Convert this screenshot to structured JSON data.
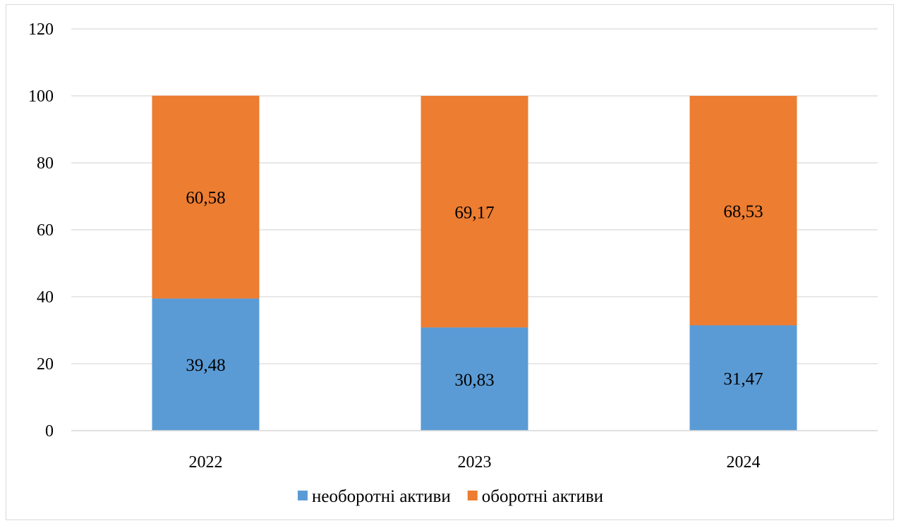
{
  "chart_data": {
    "type": "bar",
    "stacked": true,
    "categories": [
      "2022",
      "2023",
      "2024"
    ],
    "series": [
      {
        "name": "необоротні активи",
        "values": [
          39.48,
          30.83,
          31.47
        ],
        "labels": [
          "39,48",
          "30,83",
          "31,47"
        ],
        "color": "#5b9bd5"
      },
      {
        "name": "оборотні активи",
        "values": [
          60.58,
          69.17,
          68.53
        ],
        "labels": [
          "60,58",
          "69,17",
          "68,53"
        ],
        "color": "#ed7d31"
      }
    ],
    "title": "",
    "xlabel": "",
    "ylabel": "",
    "ylim": [
      0,
      120
    ],
    "yticks": [
      "0",
      "20",
      "40",
      "60",
      "80",
      "100",
      "120"
    ],
    "grid": true,
    "gridColor": "#d9d9d9",
    "legend": "bottom-center"
  }
}
